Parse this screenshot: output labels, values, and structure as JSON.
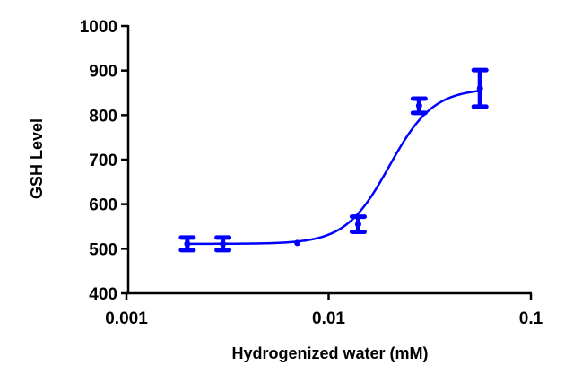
{
  "chart_data": {
    "type": "scatter",
    "title": "",
    "xlabel": "Hydrogenized water (mM)",
    "ylabel": "GSH Level",
    "xscale": "log",
    "xlim": [
      0.001,
      0.1
    ],
    "ylim": [
      400,
      1000
    ],
    "x_ticks": [
      0.001,
      0.01,
      0.1
    ],
    "x_tick_labels": [
      "0.001",
      "0.01",
      "0.1"
    ],
    "y_ticks": [
      400,
      500,
      600,
      700,
      800,
      900,
      1000
    ],
    "y_tick_labels": [
      "400",
      "500",
      "600",
      "700",
      "800",
      "900",
      "1000"
    ],
    "grid": false,
    "legend": null,
    "series": [
      {
        "name": "GSH Level",
        "color": "#0000ff",
        "x": [
          0.002,
          0.003,
          0.007,
          0.014,
          0.028,
          0.056
        ],
        "y": [
          511,
          511,
          513,
          555,
          821,
          860
        ],
        "error": [
          14,
          14,
          0,
          17,
          16,
          41
        ]
      }
    ],
    "fit": {
      "type": "sigmoidal dose-response",
      "bottom": 511,
      "top": 860,
      "log_ec50": -1.7,
      "hill_slope": 4.0,
      "color": "#0000ff"
    }
  }
}
